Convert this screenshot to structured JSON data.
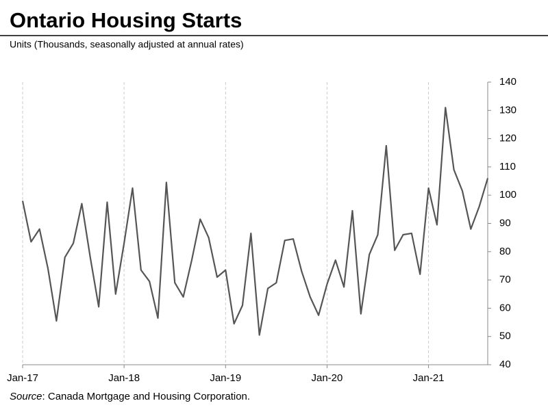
{
  "chart_data": {
    "type": "line",
    "title": "Ontario Housing Starts",
    "subtitle": "Units (Thousands, seasonally adjusted at annual rates)",
    "source_label": "Source",
    "source": ": Canada Mortgage and Housing Corporation.",
    "categories": [
      "Jan-17",
      null,
      null,
      null,
      null,
      null,
      null,
      null,
      null,
      null,
      null,
      null,
      "Jan-18",
      null,
      null,
      null,
      null,
      null,
      null,
      null,
      null,
      null,
      null,
      null,
      "Jan-19",
      null,
      null,
      null,
      null,
      null,
      null,
      null,
      null,
      null,
      null,
      null,
      "Jan-20",
      null,
      null,
      null,
      null,
      null,
      null,
      null,
      null,
      null,
      null,
      null,
      "Jan-21",
      null,
      null,
      null,
      null,
      null,
      null,
      null
    ],
    "series": [
      {
        "color": "#555555",
        "values": [
          98,
          83.5,
          88,
          74,
          55.5,
          78,
          83,
          97,
          78,
          60.5,
          97.5,
          65,
          83,
          102.5,
          73.5,
          69.5,
          56.5,
          104.5,
          69,
          64,
          77,
          91.5,
          85,
          71,
          73.5,
          54.5,
          61,
          86.5,
          50.5,
          67,
          69,
          84,
          84.5,
          73,
          64,
          57.5,
          68.5,
          77,
          67.5,
          94.5,
          58,
          79,
          86,
          117.5,
          80.5,
          86,
          86.5,
          72,
          102.5,
          89.5,
          131,
          109,
          101.5,
          88,
          96,
          106
        ]
      }
    ],
    "ylim": [
      40,
      140
    ],
    "yticks": [
      40,
      50,
      60,
      70,
      80,
      90,
      100,
      110,
      120,
      130,
      140
    ],
    "grid": true
  }
}
